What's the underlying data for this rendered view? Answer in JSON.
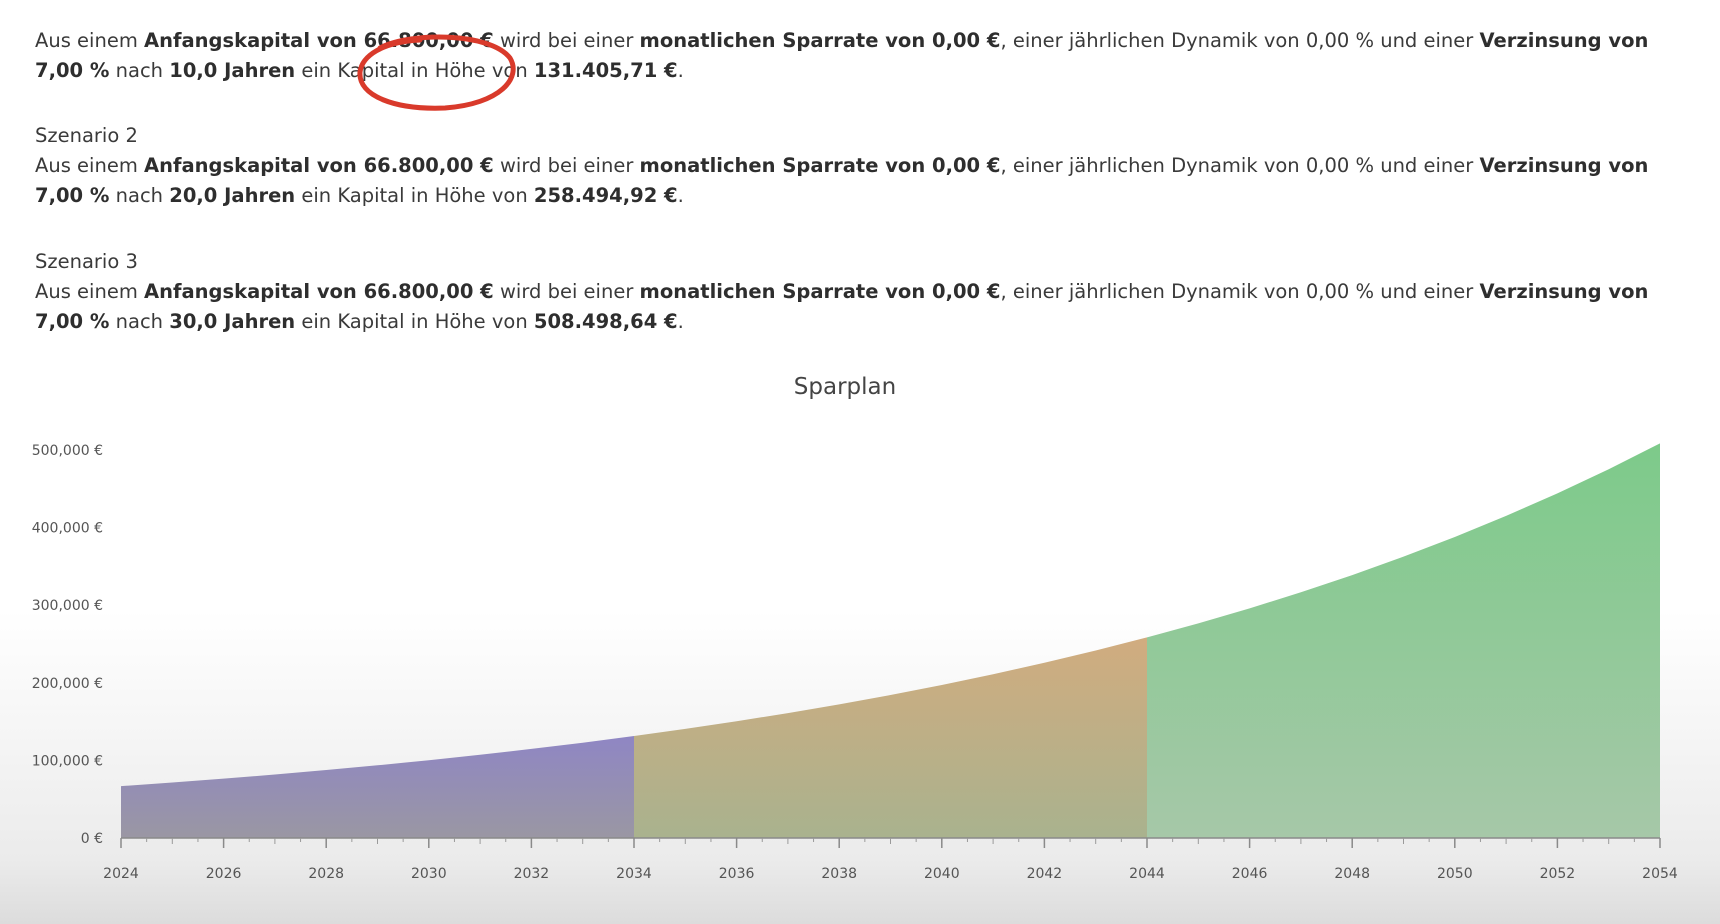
{
  "scenarios": [
    {
      "title": "",
      "p_intro": "Aus einem ",
      "b_capital": "Anfangskapital von 66.800,00 €",
      "p_mid1": " wird bei einer ",
      "b_rate": "monatlichen Sparrate von 0,00 €",
      "p_mid2": ", einer jährlichen Dynamik von 0,00 % und einer ",
      "b_interest": "Verzinsung von 7,00 %",
      "p_mid3": " nach ",
      "b_years": "10,0 Jahren",
      "p_mid4": " ein Kapital in Höhe von ",
      "b_result": "131.405,71 €",
      "p_end": "."
    },
    {
      "title": "Szenario 2",
      "p_intro": "Aus einem ",
      "b_capital": "Anfangskapital von 66.800,00 €",
      "p_mid1": " wird bei einer ",
      "b_rate": "monatlichen Sparrate von 0,00 €",
      "p_mid2": ", einer jährlichen Dynamik von 0,00 % und einer ",
      "b_interest": "Verzinsung von 7,00 %",
      "p_mid3": " nach ",
      "b_years": "20,0 Jahren",
      "p_mid4": " ein Kapital in Höhe von ",
      "b_result": "258.494,92 €",
      "p_end": "."
    },
    {
      "title": "Szenario 3",
      "p_intro": "Aus einem ",
      "b_capital": "Anfangskapital von 66.800,00 €",
      "p_mid1": " wird bei einer ",
      "b_rate": "monatlichen Sparrate von 0,00 €",
      "p_mid2": ", einer jährlichen Dynamik von 0,00 % und einer ",
      "b_interest": "Verzinsung von 7,00 %",
      "p_mid3": " nach ",
      "b_years": "30,0 Jahren",
      "p_mid4": " ein Kapital in Höhe von ",
      "b_result": "508.498,64 €",
      "p_end": "."
    }
  ],
  "highlight": {
    "color": "#d93a2b"
  },
  "chart_data": {
    "type": "area",
    "title": "Sparplan",
    "xlabel": "",
    "ylabel": "",
    "xlim": [
      2024,
      2054
    ],
    "ylim": [
      0,
      500000
    ],
    "x_ticks": [
      "2024",
      "2026",
      "2028",
      "2030",
      "2032",
      "2034",
      "2036",
      "2038",
      "2040",
      "2042",
      "2044",
      "2046",
      "2048",
      "2050",
      "2052",
      "2054"
    ],
    "y_ticks": [
      "0 €",
      "100,000 €",
      "200,000 €",
      "300,000 €",
      "400,000 €",
      "500,000 €"
    ],
    "grid": false,
    "legend": "none",
    "series": [
      {
        "color_top": "#8f86c4",
        "color_bottom": "#9a97a3",
        "x": [
          2024,
          2025,
          2026,
          2027,
          2028,
          2029,
          2030,
          2031,
          2032,
          2033,
          2034
        ],
        "values": [
          66800,
          71476,
          76479,
          81833,
          87561,
          93691,
          100249,
          107266,
          114775,
          122809,
          131406
        ]
      },
      {
        "color_top": "#d1ac7f",
        "color_bottom": "#a9b28e",
        "x": [
          2034,
          2035,
          2036,
          2037,
          2038,
          2039,
          2040,
          2041,
          2042,
          2043,
          2044
        ],
        "values": [
          131406,
          140604,
          150446,
          160977,
          172246,
          184303,
          197204,
          211009,
          225779,
          241584,
          258495
        ]
      },
      {
        "color_top": "#7dca8a",
        "color_bottom": "#a6c8a8",
        "x": [
          2044,
          2045,
          2046,
          2047,
          2048,
          2049,
          2050,
          2051,
          2052,
          2053,
          2054
        ],
        "values": [
          258495,
          276589,
          295951,
          316667,
          338834,
          362552,
          387930,
          415085,
          444141,
          475231,
          508499
        ]
      }
    ]
  }
}
